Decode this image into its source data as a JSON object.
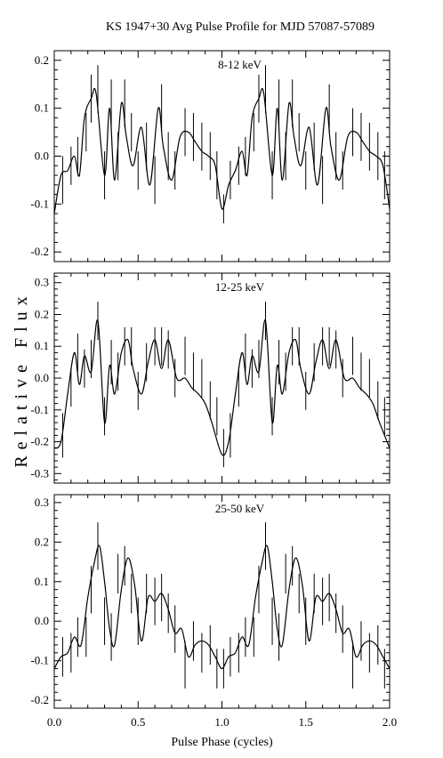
{
  "chart_data": {
    "type": "line",
    "title": "KS 1947+30 Avg Pulse Profile for MJD 57087-57089",
    "xlabel": "Pulse Phase (cycles)",
    "ylabel": "Relative Flux",
    "xlim": [
      0.0,
      2.0
    ],
    "xticks": [
      0.0,
      0.5,
      1.0,
      1.5,
      2.0
    ],
    "xtick_labels": [
      "0.0",
      "0.5",
      "1.0",
      "1.5",
      "2.0"
    ],
    "panels": [
      {
        "label": "8-12 keV",
        "ylim": [
          -0.22,
          0.22
        ],
        "yticks": [
          -0.2,
          -0.1,
          0.0,
          0.1,
          0.2
        ],
        "ytick_labels": [
          "-0.2",
          "-0.1",
          "0.0",
          "0.1",
          "0.2"
        ],
        "curve": {
          "x": [
            0.0,
            0.04,
            0.08,
            0.12,
            0.15,
            0.18,
            0.22,
            0.25,
            0.3,
            0.33,
            0.36,
            0.4,
            0.43,
            0.47,
            0.52,
            0.57,
            0.62,
            0.65,
            0.7,
            0.75,
            0.8,
            0.84,
            0.88,
            0.92,
            0.96,
            1.0,
            1.04,
            1.08,
            1.12,
            1.15,
            1.18,
            1.22,
            1.25,
            1.3,
            1.33,
            1.36,
            1.4,
            1.43,
            1.47,
            1.52,
            1.57,
            1.62,
            1.65,
            1.7,
            1.75,
            1.8,
            1.84,
            1.88,
            1.92,
            1.96,
            2.0
          ],
          "y": [
            -0.12,
            -0.04,
            -0.03,
            0.0,
            -0.04,
            0.08,
            0.12,
            0.13,
            -0.04,
            0.1,
            -0.05,
            0.11,
            0.04,
            -0.02,
            0.06,
            -0.06,
            0.1,
            0.02,
            -0.05,
            0.04,
            0.05,
            0.03,
            0.01,
            0.0,
            -0.02,
            -0.11,
            -0.06,
            -0.03,
            0.01,
            -0.04,
            0.08,
            0.12,
            0.13,
            -0.04,
            0.1,
            -0.05,
            0.11,
            0.04,
            -0.02,
            0.06,
            -0.06,
            0.1,
            0.02,
            -0.05,
            0.04,
            0.05,
            0.03,
            0.01,
            0.0,
            -0.02,
            -0.11
          ]
        },
        "points": {
          "x": [
            0.0,
            0.05,
            0.1,
            0.14,
            0.19,
            0.22,
            0.26,
            0.3,
            0.34,
            0.38,
            0.42,
            0.46,
            0.5,
            0.55,
            0.6,
            0.64,
            0.68,
            0.72,
            0.78,
            0.83,
            0.88,
            0.93,
            0.97,
            1.01,
            1.05,
            1.1,
            1.14,
            1.19,
            1.22,
            1.26,
            1.3,
            1.34,
            1.38,
            1.42,
            1.46,
            1.5,
            1.55,
            1.6,
            1.64,
            1.68,
            1.72,
            1.78,
            1.83,
            1.88,
            1.93,
            1.97,
            2.0
          ],
          "y": [
            -0.1,
            -0.05,
            -0.02,
            0.0,
            0.05,
            0.12,
            0.14,
            -0.04,
            0.11,
            0.0,
            0.11,
            0.05,
            -0.03,
            0.02,
            -0.05,
            0.1,
            0.0,
            -0.03,
            0.05,
            0.04,
            0.02,
            0.0,
            -0.04,
            -0.11,
            -0.05,
            -0.02,
            0.0,
            0.05,
            0.12,
            0.14,
            -0.04,
            0.11,
            0.0,
            0.11,
            0.05,
            -0.03,
            0.02,
            -0.05,
            0.1,
            0.0,
            -0.03,
            0.05,
            0.04,
            0.02,
            0.0,
            -0.04,
            -0.1
          ],
          "err": [
            0.05,
            0.05,
            0.04,
            0.04,
            0.04,
            0.05,
            0.05,
            0.05,
            0.05,
            0.05,
            0.05,
            0.04,
            0.04,
            0.05,
            0.05,
            0.05,
            0.05,
            0.04,
            0.05,
            0.05,
            0.05,
            0.05,
            0.05,
            0.03,
            0.04,
            0.04,
            0.04,
            0.04,
            0.05,
            0.05,
            0.05,
            0.05,
            0.05,
            0.05,
            0.04,
            0.04,
            0.05,
            0.05,
            0.05,
            0.05,
            0.04,
            0.05,
            0.05,
            0.05,
            0.05,
            0.05,
            0.04
          ]
        }
      },
      {
        "label": "12-25 keV",
        "ylim": [
          -0.33,
          0.33
        ],
        "yticks": [
          -0.3,
          -0.2,
          -0.1,
          0.0,
          0.1,
          0.2,
          0.3
        ],
        "ytick_labels": [
          "-0.3",
          "-0.2",
          "-0.1",
          "0.0",
          "0.1",
          "0.2",
          "0.3"
        ],
        "curve": {
          "x": [
            0.0,
            0.04,
            0.08,
            0.12,
            0.15,
            0.18,
            0.22,
            0.26,
            0.3,
            0.33,
            0.36,
            0.4,
            0.44,
            0.47,
            0.52,
            0.56,
            0.6,
            0.64,
            0.68,
            0.73,
            0.78,
            0.82,
            0.86,
            0.9,
            0.94,
            1.0,
            1.04,
            1.08,
            1.12,
            1.15,
            1.18,
            1.22,
            1.26,
            1.3,
            1.33,
            1.36,
            1.4,
            1.44,
            1.47,
            1.52,
            1.56,
            1.6,
            1.64,
            1.68,
            1.73,
            1.78,
            1.82,
            1.86,
            1.9,
            1.94,
            2.0
          ],
          "y": [
            -0.22,
            -0.2,
            -0.05,
            0.08,
            -0.02,
            0.07,
            0.02,
            0.18,
            -0.14,
            0.04,
            -0.05,
            0.08,
            0.12,
            0.03,
            -0.05,
            0.05,
            0.12,
            0.03,
            0.12,
            0.0,
            0.0,
            -0.03,
            -0.05,
            -0.08,
            -0.14,
            -0.24,
            -0.2,
            -0.05,
            0.08,
            -0.02,
            0.07,
            0.02,
            0.18,
            -0.14,
            0.04,
            -0.05,
            0.08,
            0.12,
            0.03,
            -0.05,
            0.05,
            0.12,
            0.03,
            0.12,
            0.0,
            0.0,
            -0.03,
            -0.05,
            -0.08,
            -0.14,
            -0.22
          ]
        },
        "points": {
          "x": [
            0.0,
            0.05,
            0.1,
            0.14,
            0.18,
            0.22,
            0.26,
            0.3,
            0.34,
            0.38,
            0.42,
            0.46,
            0.5,
            0.55,
            0.6,
            0.64,
            0.68,
            0.72,
            0.78,
            0.83,
            0.88,
            0.93,
            0.97,
            1.01,
            1.05,
            1.1,
            1.14,
            1.18,
            1.22,
            1.26,
            1.3,
            1.34,
            1.38,
            1.42,
            1.46,
            1.5,
            1.55,
            1.6,
            1.64,
            1.68,
            1.72,
            1.78,
            1.83,
            1.88,
            1.93,
            1.97,
            2.0
          ],
          "y": [
            -0.22,
            -0.18,
            -0.03,
            0.08,
            0.03,
            0.06,
            0.18,
            -0.12,
            0.05,
            0.02,
            0.1,
            0.1,
            -0.04,
            0.05,
            0.1,
            0.1,
            0.09,
            0.0,
            0.07,
            0.02,
            0.0,
            -0.07,
            -0.12,
            -0.22,
            -0.18,
            -0.03,
            0.08,
            0.03,
            0.06,
            0.18,
            -0.12,
            0.05,
            0.02,
            0.1,
            0.1,
            -0.04,
            0.05,
            0.1,
            0.1,
            0.09,
            0.0,
            0.07,
            0.02,
            0.0,
            -0.07,
            -0.12,
            -0.22
          ],
          "err": [
            0.07,
            0.07,
            0.06,
            0.06,
            0.06,
            0.06,
            0.06,
            0.06,
            0.07,
            0.06,
            0.06,
            0.06,
            0.06,
            0.06,
            0.06,
            0.06,
            0.06,
            0.06,
            0.06,
            0.06,
            0.06,
            0.06,
            0.06,
            0.06,
            0.07,
            0.06,
            0.06,
            0.06,
            0.06,
            0.06,
            0.06,
            0.07,
            0.06,
            0.06,
            0.06,
            0.06,
            0.06,
            0.06,
            0.06,
            0.06,
            0.06,
            0.06,
            0.06,
            0.06,
            0.06,
            0.06,
            0.07
          ]
        }
      },
      {
        "label": "25-50 keV",
        "ylim": [
          -0.22,
          0.32
        ],
        "yticks": [
          -0.2,
          -0.1,
          0.0,
          0.1,
          0.2,
          0.3
        ],
        "ytick_labels": [
          "-0.2",
          "-0.1",
          "0.0",
          "0.1",
          "0.2",
          "0.3"
        ],
        "curve": {
          "x": [
            0.0,
            0.04,
            0.08,
            0.12,
            0.16,
            0.2,
            0.24,
            0.27,
            0.3,
            0.33,
            0.36,
            0.4,
            0.44,
            0.48,
            0.52,
            0.56,
            0.6,
            0.64,
            0.68,
            0.72,
            0.76,
            0.8,
            0.84,
            0.88,
            0.92,
            0.96,
            1.0,
            1.04,
            1.08,
            1.12,
            1.16,
            1.2,
            1.24,
            1.27,
            1.3,
            1.33,
            1.36,
            1.4,
            1.44,
            1.48,
            1.52,
            1.56,
            1.6,
            1.64,
            1.68,
            1.72,
            1.76,
            1.8,
            1.84,
            1.88,
            1.92,
            1.96,
            2.0
          ],
          "y": [
            -0.12,
            -0.09,
            -0.08,
            -0.04,
            -0.06,
            0.06,
            0.15,
            0.19,
            0.1,
            -0.02,
            -0.06,
            0.08,
            0.16,
            0.09,
            -0.05,
            0.06,
            0.05,
            0.07,
            0.03,
            -0.03,
            -0.02,
            -0.09,
            -0.06,
            -0.05,
            -0.06,
            -0.09,
            -0.12,
            -0.09,
            -0.08,
            -0.04,
            -0.06,
            0.06,
            0.15,
            0.19,
            0.1,
            -0.02,
            -0.06,
            0.08,
            0.16,
            0.09,
            -0.05,
            0.06,
            0.05,
            0.07,
            0.03,
            -0.03,
            -0.02,
            -0.09,
            -0.06,
            -0.05,
            -0.06,
            -0.09,
            -0.12
          ]
        },
        "points": {
          "x": [
            0.0,
            0.05,
            0.1,
            0.14,
            0.19,
            0.22,
            0.26,
            0.3,
            0.34,
            0.38,
            0.42,
            0.46,
            0.5,
            0.55,
            0.6,
            0.64,
            0.68,
            0.72,
            0.78,
            0.83,
            0.88,
            0.93,
            0.97,
            1.01,
            1.05,
            1.1,
            1.14,
            1.19,
            1.22,
            1.26,
            1.3,
            1.34,
            1.38,
            1.42,
            1.46,
            1.5,
            1.55,
            1.6,
            1.64,
            1.68,
            1.72,
            1.78,
            1.83,
            1.88,
            1.93,
            1.97,
            2.0
          ],
          "y": [
            -0.12,
            -0.09,
            -0.08,
            -0.04,
            -0.04,
            0.08,
            0.19,
            0.0,
            -0.04,
            0.12,
            0.14,
            0.07,
            0.0,
            0.07,
            0.05,
            0.06,
            0.02,
            -0.02,
            -0.11,
            -0.05,
            -0.08,
            -0.06,
            -0.12,
            -0.12,
            -0.09,
            -0.08,
            -0.04,
            -0.04,
            0.08,
            0.19,
            0.0,
            -0.04,
            0.12,
            0.14,
            0.07,
            0.0,
            0.07,
            0.05,
            0.06,
            0.02,
            -0.02,
            -0.11,
            -0.05,
            -0.08,
            -0.06,
            -0.12,
            -0.12
          ],
          "err": [
            0.05,
            0.05,
            0.05,
            0.05,
            0.05,
            0.06,
            0.06,
            0.06,
            0.06,
            0.05,
            0.05,
            0.05,
            0.06,
            0.05,
            0.06,
            0.06,
            0.05,
            0.06,
            0.06,
            0.05,
            0.05,
            0.05,
            0.05,
            0.05,
            0.05,
            0.05,
            0.05,
            0.05,
            0.06,
            0.06,
            0.06,
            0.06,
            0.05,
            0.05,
            0.05,
            0.06,
            0.05,
            0.06,
            0.06,
            0.05,
            0.06,
            0.06,
            0.05,
            0.05,
            0.05,
            0.05,
            0.05
          ]
        }
      }
    ]
  }
}
